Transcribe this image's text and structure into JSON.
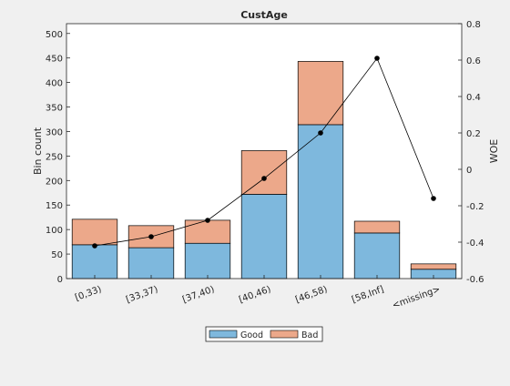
{
  "chart_data": {
    "type": "bar",
    "title": "CustAge",
    "xlabel": "",
    "ylabel": "Bin count",
    "y2label": "WOE",
    "categories": [
      "[0,33)",
      "[33,37)",
      "[37,40)",
      "[40,46)",
      "[46,58)",
      "[58,Inf]",
      "<missing>"
    ],
    "series": [
      {
        "name": "Good",
        "values": [
          69,
          63,
          72,
          172,
          314,
          93,
          19
        ],
        "color": "#7eb8dd"
      },
      {
        "name": "Bad",
        "values": [
          52,
          45,
          47,
          89,
          129,
          24,
          11
        ],
        "color": "#eca88a"
      }
    ],
    "line": {
      "axis": "right",
      "values": [
        -0.42,
        -0.37,
        -0.28,
        -0.05,
        0.2,
        0.61,
        -0.16
      ],
      "color": "#000000"
    },
    "ylim": [
      0,
      520
    ],
    "yticks": [
      0,
      50,
      100,
      150,
      200,
      250,
      300,
      350,
      400,
      450,
      500
    ],
    "y2lim": [
      -0.6,
      0.8
    ],
    "y2ticks": [
      -0.6,
      -0.4,
      -0.2,
      0,
      0.2,
      0.4,
      0.6,
      0.8
    ],
    "stacked": true,
    "grid": false,
    "legend": {
      "placement": "bottom-center",
      "orientation": "horizontal"
    }
  }
}
